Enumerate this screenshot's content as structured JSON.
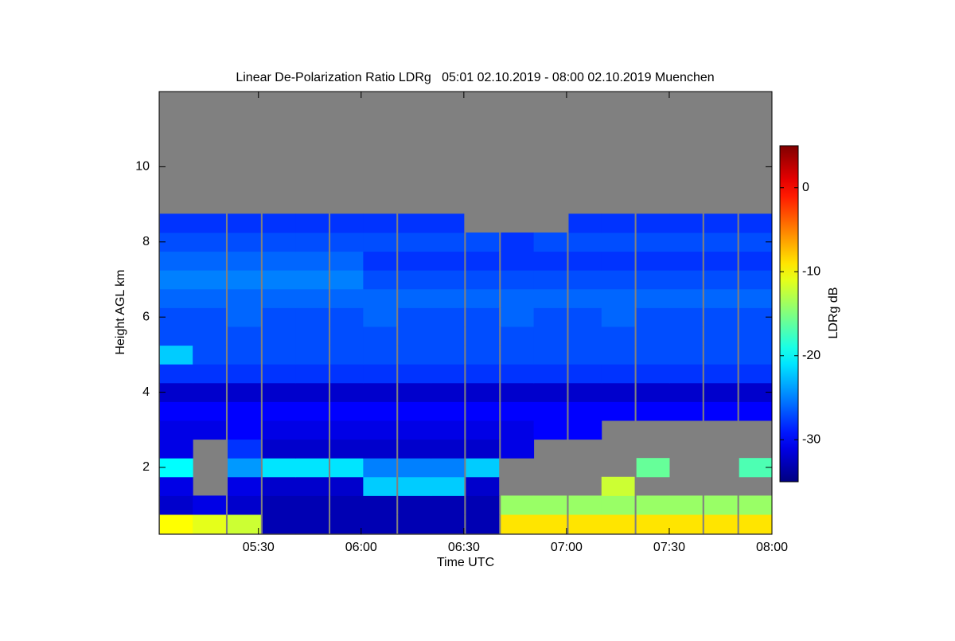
{
  "chart_data": {
    "type": "heatmap",
    "title": "Linear De-Polarization Ratio LDRg   05:01 02.10.2019 - 08:00 02.10.2019 Muenchen",
    "x_label": "Time UTC",
    "y_label": "Height AGL km",
    "colorbar_label": "LDRg dB",
    "colormap": "jet",
    "nodata_color": "#808080",
    "xlim": [
      5.0167,
      8.0
    ],
    "xticks": [
      {
        "value": 5.5,
        "label": "05:30"
      },
      {
        "value": 6.0,
        "label": "06:00"
      },
      {
        "value": 6.5,
        "label": "06:30"
      },
      {
        "value": 7.0,
        "label": "07:00"
      },
      {
        "value": 7.5,
        "label": "07:30"
      },
      {
        "value": 8.0,
        "label": "08:00"
      }
    ],
    "ylim": [
      0.22,
      12
    ],
    "yticks": [
      2,
      4,
      6,
      8,
      10
    ],
    "clim": [
      -35,
      5
    ],
    "cticks": [
      0,
      -10,
      -20,
      -30
    ],
    "x": [
      5.1,
      5.26,
      5.43,
      5.6,
      5.76,
      5.93,
      6.09,
      6.26,
      6.42,
      6.59,
      6.76,
      6.92,
      7.09,
      7.25,
      7.42,
      7.58,
      7.75,
      7.92
    ],
    "y": [
      0.5,
      1.0,
      1.5,
      2.0,
      2.5,
      3.0,
      3.5,
      4.0,
      4.5,
      5.0,
      5.5,
      6.0,
      6.5,
      7.0,
      7.5,
      8.0,
      8.5
    ],
    "z": [
      [
        -10,
        -11,
        -12,
        -33,
        -33,
        -33,
        -33,
        -33,
        -33,
        -33,
        -9,
        -9,
        -9,
        -9,
        -9,
        -9,
        -9,
        -9
      ],
      [
        -32,
        -31,
        -32,
        -33,
        -33,
        -33,
        -33,
        -33,
        -33,
        -33,
        -14,
        -14,
        -14,
        -14,
        -14,
        -14,
        -14,
        -14
      ],
      [
        -31,
        null,
        -31,
        -32,
        -32,
        -32,
        -22,
        -22,
        -22,
        -32,
        null,
        null,
        null,
        -12,
        null,
        null,
        null,
        null
      ],
      [
        -20,
        null,
        -24,
        -21,
        -21,
        -21,
        -25,
        -25,
        -25,
        -22,
        null,
        null,
        null,
        null,
        -16,
        null,
        null,
        -17
      ],
      [
        -31,
        null,
        -28,
        -32,
        -32,
        -32,
        -32,
        -32,
        -32,
        -32,
        -31,
        null,
        null,
        null,
        null,
        null,
        null,
        null
      ],
      [
        -31,
        -31,
        -30,
        -31,
        -31,
        -31,
        -31,
        -31,
        -31,
        -31,
        -31,
        -30,
        -30,
        null,
        null,
        null,
        null,
        null
      ],
      [
        -30,
        -30,
        -30,
        -30,
        -30,
        -30,
        -30,
        -30,
        -30,
        -30,
        -30,
        -30,
        -30,
        -30,
        -30,
        -30,
        -30,
        -30
      ],
      [
        -32,
        -32,
        -32,
        -32,
        -32,
        -32,
        -32,
        -32,
        -32,
        -32,
        -32,
        -32,
        -32,
        -32,
        -32,
        -32,
        -32,
        -32
      ],
      [
        -28,
        -28,
        -28,
        -28,
        -28,
        -28,
        -28,
        -28,
        -28,
        -28,
        -28,
        -28,
        -28,
        -28,
        -28,
        -28,
        -28,
        -28
      ],
      [
        -22,
        -27,
        -27,
        -27,
        -27,
        -27,
        -27,
        -27,
        -27,
        -27,
        -27,
        -27,
        -27,
        -27,
        -27,
        -27,
        -27,
        -27
      ],
      [
        -27,
        -27,
        -27,
        -27,
        -27,
        -27,
        -27,
        -27,
        -27,
        -27,
        -27,
        -27,
        -27,
        -27,
        -27,
        -27,
        -27,
        -27
      ],
      [
        -27,
        -27,
        -26,
        -27,
        -27,
        -27,
        -26,
        -27,
        -27,
        -27,
        -26,
        -27,
        -27,
        -26,
        -27,
        -27,
        -27,
        -27
      ],
      [
        -26,
        -26,
        -26,
        -26,
        -26,
        -26,
        -26,
        -26,
        -26,
        -26,
        -26,
        -26,
        -26,
        -26,
        -26,
        -26,
        -26,
        -26
      ],
      [
        -25,
        -25,
        -25,
        -25,
        -25,
        -25,
        -27,
        -27,
        -27,
        -27,
        -27,
        -27,
        -27,
        -27,
        -27,
        -27,
        -27,
        -27
      ],
      [
        -26,
        -26,
        -26,
        -26,
        -26,
        -26,
        -28,
        -28,
        -28,
        -28,
        -28,
        -28,
        -28,
        -28,
        -28,
        -28,
        -28,
        -28
      ],
      [
        -27,
        -27,
        -27,
        -27,
        -27,
        -27,
        -27,
        -27,
        -27,
        -27,
        -28,
        -27,
        -27,
        -27,
        -27,
        -27,
        -27,
        -27
      ],
      [
        -28,
        -28,
        -28,
        -28,
        -28,
        -28,
        -28,
        -28,
        -28,
        null,
        null,
        null,
        -28,
        -28,
        -28,
        -28,
        -28,
        -28
      ]
    ]
  }
}
